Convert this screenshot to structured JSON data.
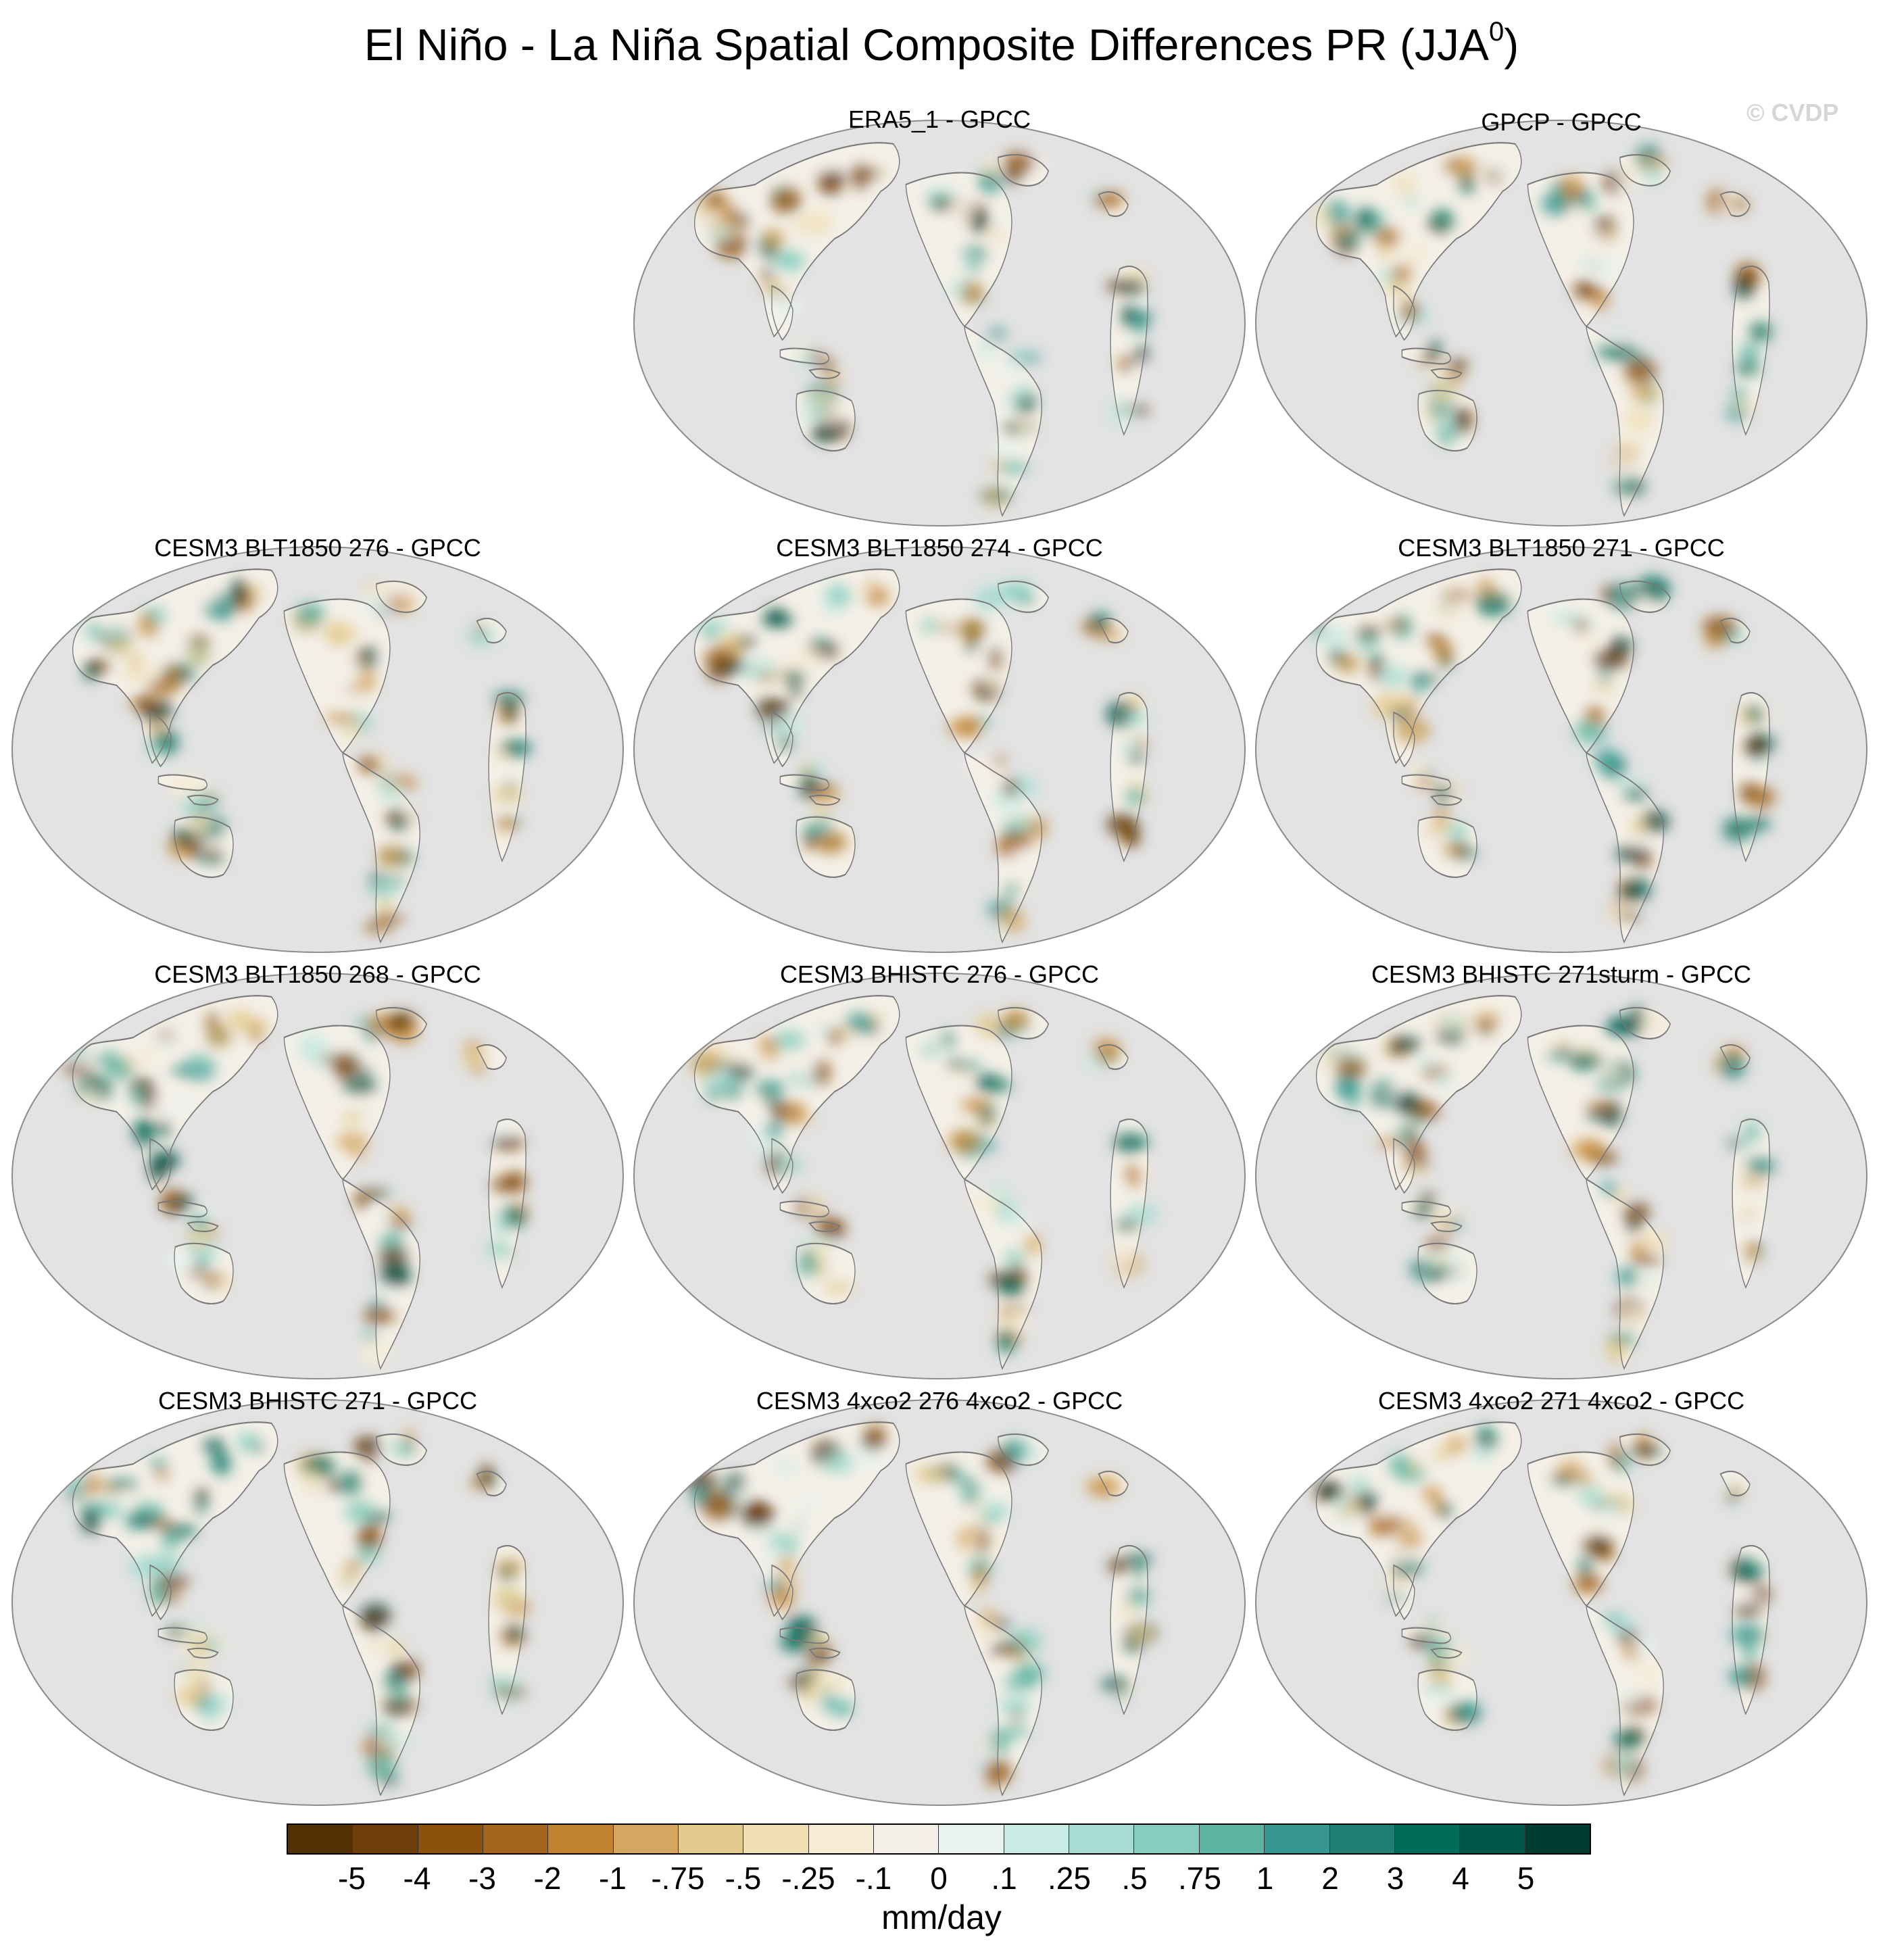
{
  "figure": {
    "title": "El Niño - La Niña Spatial Composite Differences PR (JJA",
    "title_superscript": "0",
    "title_close": ")",
    "copyright": "© CVDP"
  },
  "panels": [
    {
      "title": "ERA5_1 - GPCC",
      "pattern": 1
    },
    {
      "title": "GPCP - GPCC",
      "pattern": 2
    },
    {
      "title": "CESM3 BLT1850 276 - GPCC",
      "pattern": 3
    },
    {
      "title": "CESM3 BLT1850 274 - GPCC",
      "pattern": 4
    },
    {
      "title": "CESM3 BLT1850 271 - GPCC",
      "pattern": 5
    },
    {
      "title": "CESM3 BLT1850 268 - GPCC",
      "pattern": 6
    },
    {
      "title": "CESM3 BHISTC 276 - GPCC",
      "pattern": 7
    },
    {
      "title": "CESM3 BHISTC 271sturm - GPCC",
      "pattern": 8
    },
    {
      "title": "CESM3 BHISTC 271 - GPCC",
      "pattern": 9
    },
    {
      "title": "CESM3 4xco2 276 4xco2 - GPCC",
      "pattern": 10
    },
    {
      "title": "CESM3 4xco2 271 4xco2 - GPCC",
      "pattern": 11
    }
  ],
  "colorbar": {
    "units": "mm/day",
    "colors": [
      "#543005",
      "#6f3d09",
      "#8c510a",
      "#a6651c",
      "#c0822f",
      "#d4a660",
      "#e4c98c",
      "#f0deb5",
      "#f6ecd3",
      "#f4f0e8",
      "#e8f3f0",
      "#c9ebe4",
      "#a8dcd2",
      "#86cdbf",
      "#5fb3a3",
      "#35978f",
      "#1f7f72",
      "#016c59",
      "#01574a",
      "#003c30"
    ],
    "tick_labels": [
      "-5",
      "-4",
      "-3",
      "-2",
      "-1",
      "-.75",
      "-.5",
      "-.25",
      "-.1",
      "0",
      ".1",
      ".25",
      ".5",
      ".75",
      "1",
      "2",
      "3",
      "4",
      "5"
    ]
  }
}
